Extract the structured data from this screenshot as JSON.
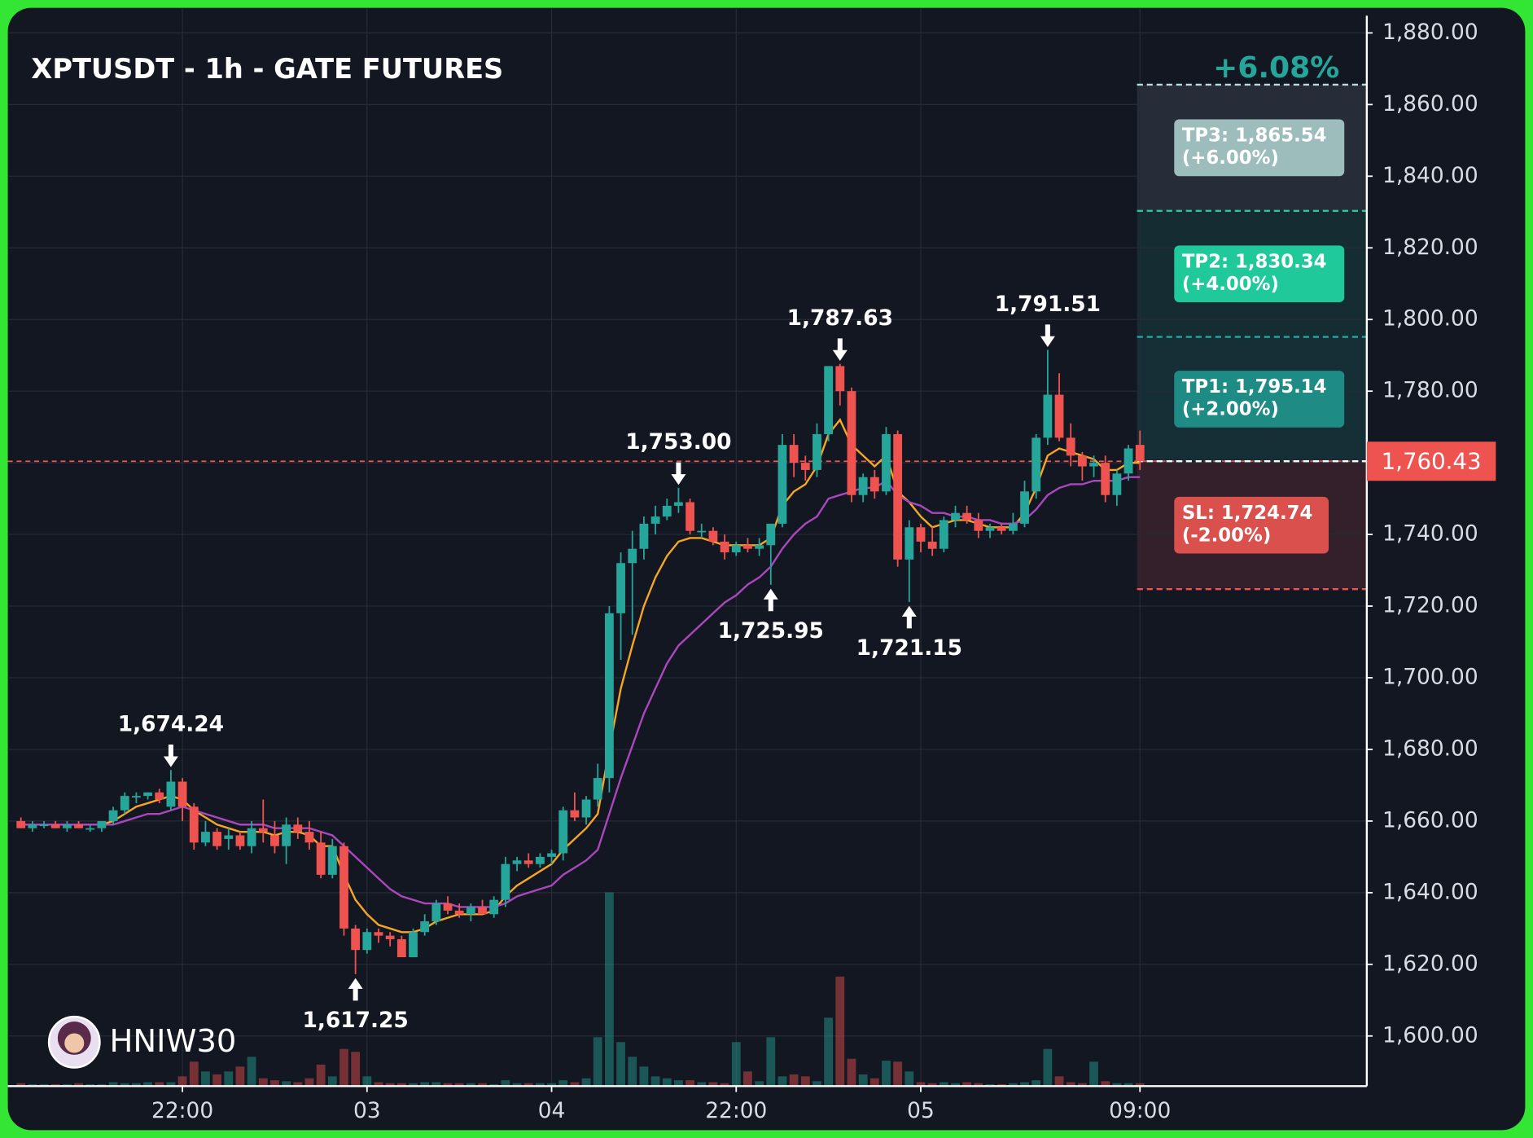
{
  "chart_data": {
    "type": "candlestick",
    "title": "XPTUSDT - 1h - GATE FUTURES",
    "watermark": "HNIW30",
    "up_color": "#26a69a",
    "down_color": "#ef5350",
    "open": [
      1660,
      1658,
      1659,
      1659,
      1658,
      1659,
      1658,
      1658,
      1660,
      1663,
      1667,
      1667,
      1668,
      1664,
      1671,
      1664,
      1654,
      1657,
      1655,
      1656,
      1653,
      1658,
      1656,
      1653,
      1659,
      1657,
      1654,
      1645,
      1653,
      1630,
      1624,
      1629,
      1628,
      1627,
      1622,
      1629,
      1632,
      1637,
      1635,
      1634,
      1636,
      1634,
      1638,
      1648,
      1649,
      1648,
      1650,
      1651,
      1663,
      1661,
      1666,
      1672,
      1718,
      1732,
      1736,
      1743,
      1745,
      1748,
      1749,
      1741,
      1741,
      1738,
      1735,
      1737,
      1736,
      1737,
      1743,
      1765,
      1760,
      1758,
      1768,
      1787,
      1780,
      1751,
      1756,
      1752,
      1768,
      1733,
      1742,
      1738,
      1736,
      1744,
      1746,
      1744,
      1741,
      1742,
      1741,
      1743,
      1752,
      1767,
      1779,
      1767,
      1762,
      1759,
      1760,
      1751,
      1757,
      1765
    ],
    "high": [
      1661,
      1660,
      1660,
      1660,
      1660,
      1660,
      1659,
      1660,
      1664,
      1668,
      1668,
      1668,
      1669,
      1674.24,
      1672,
      1665,
      1660,
      1658,
      1658,
      1657,
      1660,
      1666,
      1660,
      1661,
      1661,
      1660,
      1657,
      1655,
      1654,
      1631,
      1630,
      1630,
      1629,
      1628,
      1630,
      1634,
      1638,
      1639,
      1637,
      1637,
      1638,
      1639,
      1650,
      1650,
      1651,
      1651,
      1652,
      1664,
      1668,
      1667,
      1676,
      1720,
      1735,
      1741,
      1745,
      1748,
      1750,
      1753,
      1750,
      1743,
      1742,
      1740,
      1738,
      1739,
      1739,
      1740,
      1768,
      1768,
      1762,
      1771,
      1787,
      1787.63,
      1781,
      1757,
      1758,
      1770,
      1769,
      1744,
      1743,
      1742,
      1745,
      1748,
      1748,
      1746,
      1743,
      1743,
      1746,
      1755,
      1768,
      1791.51,
      1785,
      1771,
      1763,
      1762,
      1762,
      1758,
      1765,
      1769
    ],
    "low": [
      1658,
      1657,
      1658,
      1658,
      1657,
      1658,
      1657,
      1657,
      1659,
      1662,
      1665,
      1666,
      1665,
      1663,
      1660,
      1652,
      1653,
      1652,
      1652,
      1652,
      1651,
      1654,
      1651,
      1648,
      1655,
      1652,
      1644,
      1644,
      1628,
      1617.25,
      1623,
      1626,
      1625,
      1622,
      1622,
      1628,
      1631,
      1634,
      1633,
      1632,
      1634,
      1633,
      1636,
      1646,
      1647,
      1647,
      1648,
      1649,
      1660,
      1659,
      1664,
      1668,
      1705,
      1712,
      1733,
      1740,
      1744,
      1746,
      1740,
      1739,
      1737,
      1733,
      1734,
      1735,
      1734,
      1725.95,
      1742,
      1756,
      1755,
      1756,
      1766,
      1776,
      1749,
      1749,
      1750,
      1751,
      1731,
      1721.15,
      1735,
      1734,
      1735,
      1742,
      1743,
      1739,
      1739,
      1740,
      1740,
      1742,
      1750,
      1765,
      1766,
      1759,
      1755,
      1756,
      1749,
      1748,
      1755,
      1758
    ],
    "close": [
      1658,
      1659,
      1659,
      1658,
      1659,
      1658,
      1658,
      1660,
      1663,
      1667,
      1667,
      1668,
      1666,
      1671,
      1664,
      1654,
      1657,
      1653,
      1656,
      1653,
      1658,
      1657,
      1653,
      1659,
      1657,
      1654,
      1645,
      1653,
      1630,
      1624,
      1629,
      1628,
      1627,
      1622,
      1629,
      1632,
      1637,
      1635,
      1634,
      1636,
      1634,
      1638,
      1648,
      1649,
      1648,
      1650,
      1651,
      1663,
      1661,
      1666,
      1672,
      1718,
      1732,
      1736,
      1743,
      1745,
      1748,
      1749,
      1741,
      1741,
      1738,
      1735,
      1737,
      1736,
      1737,
      1743,
      1765,
      1760,
      1758,
      1768,
      1787,
      1780,
      1751,
      1756,
      1752,
      1768,
      1733,
      1742,
      1738,
      1736,
      1744,
      1746,
      1744,
      1741,
      1742,
      1741,
      1743,
      1752,
      1767,
      1779,
      1767,
      1762,
      1759,
      1760,
      1751,
      1757,
      1764,
      1760.43
    ],
    "volume": [
      3,
      2,
      2,
      2,
      2,
      3,
      2,
      2,
      4,
      3,
      3,
      4,
      4,
      4,
      10,
      25,
      15,
      12,
      15,
      20,
      30,
      8,
      6,
      5,
      4,
      8,
      22,
      10,
      38,
      35,
      10,
      4,
      3,
      3,
      3,
      4,
      4,
      3,
      3,
      3,
      3,
      2,
      6,
      3,
      3,
      3,
      3,
      6,
      4,
      8,
      50,
      198,
      45,
      30,
      20,
      10,
      8,
      6,
      6,
      4,
      4,
      3,
      45,
      15,
      5,
      50,
      10,
      12,
      10,
      5,
      70,
      112,
      28,
      12,
      8,
      26,
      25,
      15,
      4,
      3,
      4,
      3,
      4,
      3,
      2,
      2,
      3,
      4,
      6,
      38,
      10,
      4,
      3,
      25,
      5,
      3,
      3,
      3
    ],
    "high_labels": [
      null,
      null,
      null,
      null,
      null,
      null,
      null,
      null,
      null,
      null,
      null,
      null,
      null,
      "1,674.24",
      null,
      null,
      null,
      null,
      null,
      null,
      null,
      null,
      null,
      null,
      null,
      null,
      null,
      null,
      null,
      null,
      null,
      null,
      null,
      null,
      null,
      null,
      null,
      null,
      null,
      null,
      null,
      null,
      null,
      null,
      null,
      null,
      null,
      null,
      null,
      null,
      null,
      null,
      null,
      null,
      null,
      null,
      null,
      "1,753.00",
      null,
      null,
      null,
      null,
      null,
      null,
      null,
      null,
      null,
      null,
      null,
      null,
      null,
      "1,787.63",
      null,
      null,
      null,
      null,
      null,
      null,
      null,
      null,
      null,
      null,
      null,
      null,
      null,
      null,
      null,
      null,
      null,
      "1,791.51",
      null,
      null,
      null,
      null,
      null,
      null,
      null,
      null
    ],
    "low_labels": [
      null,
      null,
      null,
      null,
      null,
      null,
      null,
      null,
      null,
      null,
      null,
      null,
      null,
      null,
      null,
      null,
      null,
      null,
      null,
      null,
      null,
      null,
      null,
      null,
      null,
      null,
      null,
      null,
      null,
      "1,617.25",
      null,
      null,
      null,
      null,
      null,
      null,
      null,
      null,
      null,
      null,
      null,
      null,
      null,
      null,
      null,
      null,
      null,
      null,
      null,
      null,
      null,
      null,
      null,
      null,
      null,
      null,
      null,
      null,
      null,
      null,
      null,
      null,
      null,
      null,
      null,
      "1,725.95",
      null,
      null,
      null,
      null,
      null,
      null,
      null,
      null,
      null,
      null,
      null,
      "1,721.15",
      null,
      null,
      null,
      null,
      null,
      null,
      null,
      null,
      null,
      null,
      null,
      null,
      null,
      null,
      null,
      null,
      null,
      null,
      null,
      null
    ],
    "ma_lines": [
      {
        "color": "#f5a623",
        "values": [
          1659,
          1659,
          1659,
          1659,
          1659,
          1659,
          1659,
          1659,
          1660,
          1662,
          1664,
          1665,
          1666,
          1667,
          1666,
          1663,
          1661,
          1659,
          1658,
          1657,
          1657,
          1657,
          1656,
          1657,
          1657,
          1656,
          1653,
          1653,
          1645,
          1638,
          1634,
          1631,
          1630,
          1629,
          1629,
          1630,
          1632,
          1633,
          1634,
          1634,
          1634,
          1635,
          1639,
          1642,
          1644,
          1646,
          1648,
          1652,
          1655,
          1658,
          1662,
          1680,
          1697,
          1709,
          1720,
          1728,
          1734,
          1738,
          1739,
          1739,
          1738,
          1737,
          1737,
          1737,
          1737,
          1739,
          1748,
          1752,
          1754,
          1759,
          1768,
          1772,
          1765,
          1762,
          1759,
          1762,
          1752,
          1749,
          1745,
          1742,
          1743,
          1744,
          1744,
          1743,
          1742,
          1742,
          1742,
          1746,
          1753,
          1762,
          1764,
          1763,
          1762,
          1761,
          1758,
          1758,
          1760,
          1760
        ]
      },
      {
        "color": "#ab47bc",
        "values": [
          1659,
          1659,
          1659,
          1659,
          1659,
          1659,
          1659,
          1659,
          1659,
          1660,
          1661,
          1662,
          1662,
          1663,
          1664,
          1663,
          1662,
          1661,
          1660,
          1659,
          1659,
          1659,
          1658,
          1658,
          1658,
          1658,
          1657,
          1656,
          1653,
          1650,
          1647,
          1644,
          1641,
          1639,
          1638,
          1637,
          1637,
          1637,
          1636,
          1636,
          1636,
          1636,
          1637,
          1639,
          1640,
          1641,
          1642,
          1645,
          1647,
          1649,
          1652,
          1662,
          1672,
          1681,
          1690,
          1697,
          1704,
          1709,
          1712,
          1715,
          1718,
          1721,
          1723,
          1726,
          1728,
          1731,
          1736,
          1740,
          1743,
          1745,
          1750,
          1751,
          1752,
          1753,
          1753,
          1755,
          1751,
          1749,
          1748,
          1746,
          1746,
          1745,
          1745,
          1744,
          1744,
          1743,
          1743,
          1744,
          1747,
          1751,
          1753,
          1754,
          1754,
          1755,
          1755,
          1755,
          1756,
          1756
        ]
      }
    ],
    "last_price": 1760.43,
    "last_price_label": "1,760.43",
    "gain_label": "+6.08%",
    "levels": [
      {
        "label": "TP3: 1,865.54",
        "pct": "(+6.00%)",
        "value": 1865.54,
        "line_color": "#b2dfdb",
        "box_color": "#9dbdbd",
        "zone_color": "#272d38"
      },
      {
        "label": "TP2: 1,830.34",
        "pct": "(+4.00%)",
        "value": 1830.34,
        "line_color": "#26c6a0",
        "box_color": "#1fc99a",
        "zone_color": "#152c33"
      },
      {
        "label": "TP1: 1,795.14",
        "pct": "(+2.00%)",
        "value": 1795.14,
        "line_color": "#26a69a",
        "box_color": "#1e8c84",
        "zone_color": "#162f36"
      },
      {
        "label": "SL: 1,724.74",
        "pct": "(-2.00%)",
        "value": 1724.74,
        "line_color": "#ef5350",
        "box_color": "#d9504c",
        "zone_color": "#33202a"
      }
    ],
    "ylim": [
      1586,
      1887
    ],
    "yticks": [
      {
        "value": 1600,
        "label": "1,600.00"
      },
      {
        "value": 1620,
        "label": "1,620.00"
      },
      {
        "value": 1640,
        "label": "1,640.00"
      },
      {
        "value": 1660,
        "label": "1,660.00"
      },
      {
        "value": 1680,
        "label": "1,680.00"
      },
      {
        "value": 1700,
        "label": "1,700.00"
      },
      {
        "value": 1720,
        "label": "1,720.00"
      },
      {
        "value": 1740,
        "label": "1,740.00"
      },
      {
        "value": 1760,
        "label": "1,760.00"
      },
      {
        "value": 1780,
        "label": "1,780.00"
      },
      {
        "value": 1800,
        "label": "1,800.00"
      },
      {
        "value": 1820,
        "label": "1,820.00"
      },
      {
        "value": 1840,
        "label": "1,840.00"
      },
      {
        "value": 1860,
        "label": "1,860.00"
      },
      {
        "value": 1880,
        "label": "1,880.00"
      }
    ],
    "xticks": [
      {
        "value": 14,
        "label": "22:00"
      },
      {
        "value": 30,
        "label": "03"
      },
      {
        "value": 46,
        "label": "04"
      },
      {
        "value": 62,
        "label": "22:00"
      },
      {
        "value": 78,
        "label": "05"
      },
      {
        "value": 97,
        "label": "09:00"
      }
    ],
    "grid": true
  }
}
